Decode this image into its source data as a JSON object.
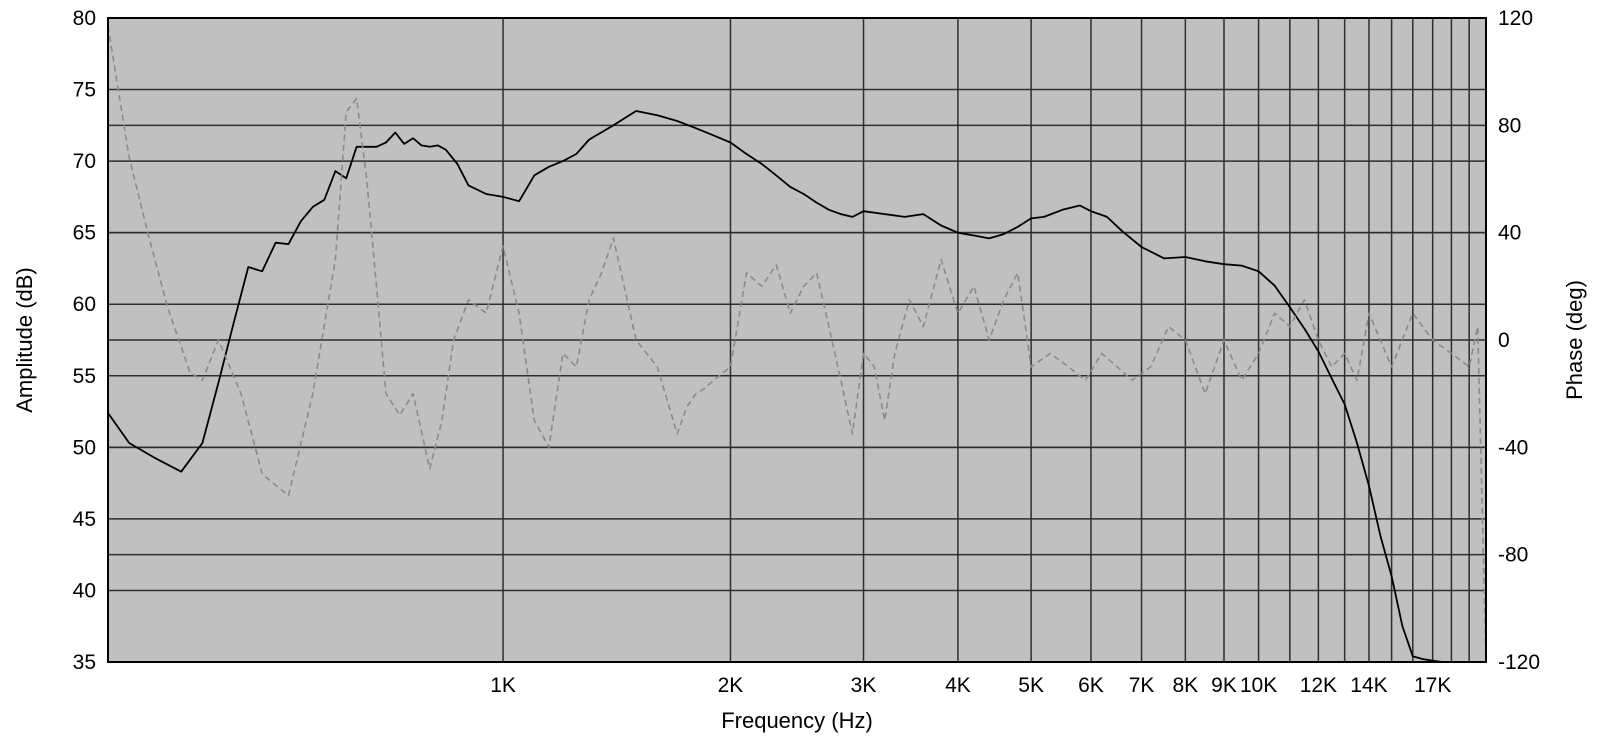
{
  "chart_data": {
    "type": "line",
    "title": "",
    "xlabel": "Frequency (Hz)",
    "ylabel": "Amplitude (dB)",
    "y2label": "Phase (deg)",
    "x_scale": "log",
    "xlim": [
      300,
      20000
    ],
    "ylim": [
      35,
      80
    ],
    "y2lim": [
      -120,
      120
    ],
    "x_ticks": [
      {
        "value": 1000,
        "label": "1K"
      },
      {
        "value": 2000,
        "label": "2K"
      },
      {
        "value": 3000,
        "label": "3K"
      },
      {
        "value": 4000,
        "label": "4K"
      },
      {
        "value": 5000,
        "label": "5K"
      },
      {
        "value": 6000,
        "label": "6K"
      },
      {
        "value": 7000,
        "label": "7K"
      },
      {
        "value": 8000,
        "label": "8K"
      },
      {
        "value": 9000,
        "label": "9K"
      },
      {
        "value": 10000,
        "label": "10K"
      },
      {
        "value": 12000,
        "label": "12K"
      },
      {
        "value": 14000,
        "label": "14K"
      },
      {
        "value": 17000,
        "label": "17K"
      }
    ],
    "x_grid_extra": [
      11000,
      13000,
      15000,
      16000,
      18000,
      19000
    ],
    "y_ticks": [
      {
        "value": 35,
        "label": "35"
      },
      {
        "value": 40,
        "label": "40"
      },
      {
        "value": 45,
        "label": "45"
      },
      {
        "value": 50,
        "label": "50"
      },
      {
        "value": 55,
        "label": "55"
      },
      {
        "value": 60,
        "label": "60"
      },
      {
        "value": 65,
        "label": "65"
      },
      {
        "value": 70,
        "label": "70"
      },
      {
        "value": 75,
        "label": "75"
      },
      {
        "value": 80,
        "label": "80"
      }
    ],
    "y2_ticks": [
      {
        "value": -120,
        "label": "-120"
      },
      {
        "value": -80,
        "label": "-80"
      },
      {
        "value": -40,
        "label": "-40"
      },
      {
        "value": 0,
        "label": "0"
      },
      {
        "value": 40,
        "label": "40"
      },
      {
        "value": 80,
        "label": "80"
      },
      {
        "value": 120,
        "label": "120"
      }
    ],
    "grid": true,
    "colors": {
      "plot_bg": "#c0c0c0",
      "grid": "#2e2e2e",
      "amplitude": "#000000",
      "phase": "#8a8a8a"
    },
    "series": [
      {
        "axis": "left",
        "style": "solid",
        "x": [
          300,
          320,
          345,
          375,
          400,
          420,
          440,
          460,
          480,
          500,
          520,
          540,
          560,
          580,
          600,
          620,
          640,
          660,
          680,
          700,
          720,
          740,
          760,
          780,
          800,
          820,
          840,
          870,
          900,
          950,
          1000,
          1050,
          1100,
          1150,
          1200,
          1250,
          1300,
          1400,
          1500,
          1600,
          1700,
          1800,
          1900,
          2000,
          2100,
          2200,
          2300,
          2400,
          2500,
          2600,
          2700,
          2800,
          2900,
          3000,
          3200,
          3400,
          3600,
          3800,
          4000,
          4200,
          4400,
          4600,
          4800,
          5000,
          5200,
          5500,
          5800,
          6000,
          6300,
          6600,
          7000,
          7500,
          8000,
          8500,
          9000,
          9500,
          10000,
          10500,
          11000,
          11500,
          12000,
          12500,
          13000,
          13500,
          14000,
          14500,
          15000,
          15500,
          16000,
          16500,
          17000,
          17500,
          18000,
          18500,
          19000,
          19500,
          20000
        ],
        "values": [
          52.4,
          50.3,
          49.3,
          48.3,
          50.3,
          54.5,
          58.7,
          62.6,
          62.3,
          64.3,
          64.2,
          65.8,
          66.8,
          67.3,
          69.3,
          68.8,
          71.0,
          71.0,
          71.0,
          71.3,
          72.0,
          71.2,
          71.6,
          71.1,
          71.0,
          71.1,
          70.8,
          69.8,
          68.3,
          67.7,
          67.5,
          67.2,
          69.0,
          69.6,
          70.0,
          70.5,
          71.5,
          72.5,
          73.5,
          73.2,
          72.8,
          72.3,
          71.8,
          71.3,
          70.5,
          69.8,
          69.0,
          68.2,
          67.7,
          67.1,
          66.6,
          66.3,
          66.1,
          66.5,
          66.3,
          66.1,
          66.3,
          65.5,
          65.0,
          64.8,
          64.6,
          64.9,
          65.4,
          66.0,
          66.1,
          66.6,
          66.9,
          66.5,
          66.1,
          65.1,
          64.0,
          63.2,
          63.3,
          63.0,
          62.8,
          62.7,
          62.3,
          61.3,
          59.8,
          58.3,
          56.7,
          54.8,
          53.0,
          50.3,
          47.3,
          43.8,
          41.0,
          37.5,
          35.4,
          35.2,
          35.1,
          35.0,
          35.0,
          35.0,
          35.0,
          35.0,
          35.0
        ]
      },
      {
        "axis": "right",
        "style": "dashed",
        "x": [
          300,
          320,
          340,
          360,
          385,
          400,
          420,
          450,
          480,
          520,
          560,
          600,
          620,
          640,
          660,
          680,
          700,
          730,
          760,
          800,
          830,
          860,
          900,
          950,
          1000,
          1050,
          1100,
          1150,
          1200,
          1250,
          1300,
          1350,
          1400,
          1500,
          1600,
          1700,
          1750,
          1800,
          1850,
          1900,
          2000,
          2100,
          2200,
          2300,
          2400,
          2500,
          2600,
          2700,
          2800,
          2900,
          3000,
          3100,
          3200,
          3300,
          3450,
          3600,
          3800,
          4000,
          4200,
          4400,
          4600,
          4800,
          5000,
          5300,
          5600,
          5900,
          6200,
          6500,
          6800,
          7200,
          7600,
          8000,
          8500,
          9000,
          9500,
          10000,
          10500,
          11000,
          11500,
          12000,
          12500,
          13000,
          13500,
          14000,
          15000,
          16000,
          17000,
          18000,
          19000,
          19500,
          20000
        ],
        "values": [
          117,
          68,
          38,
          12,
          -12,
          -15,
          0,
          -20,
          -50,
          -58,
          -20,
          30,
          85,
          90,
          60,
          20,
          -20,
          -28,
          -20,
          -48,
          -30,
          0,
          15,
          10,
          35,
          10,
          -30,
          -40,
          -5,
          -10,
          15,
          25,
          38,
          0,
          -10,
          -35,
          -25,
          -20,
          -18,
          -15,
          -10,
          25,
          20,
          28,
          10,
          20,
          25,
          5,
          -15,
          -35,
          -5,
          -10,
          -30,
          -5,
          15,
          5,
          30,
          10,
          20,
          0,
          15,
          25,
          -10,
          -5,
          -10,
          -15,
          -5,
          -10,
          -15,
          -10,
          5,
          0,
          -20,
          0,
          -15,
          -5,
          10,
          5,
          15,
          0,
          -10,
          -5,
          -15,
          10,
          -10,
          10,
          0,
          -5,
          -10,
          5,
          -120
        ]
      }
    ]
  }
}
